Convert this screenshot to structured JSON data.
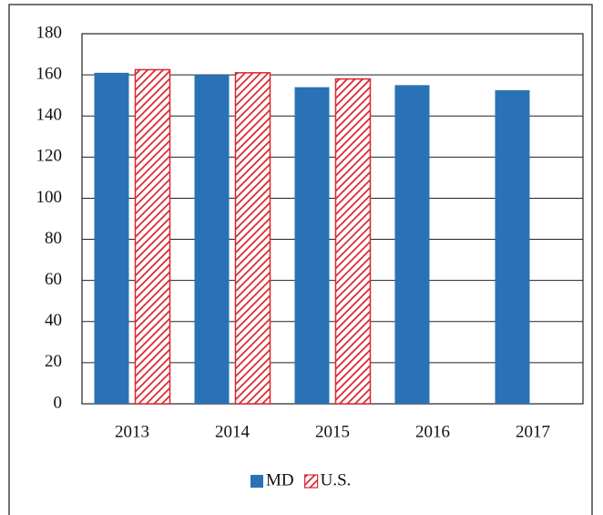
{
  "chart_data": {
    "type": "bar",
    "categories": [
      "2013",
      "2014",
      "2015",
      "2016",
      "2017"
    ],
    "series": [
      {
        "name": "MD",
        "color": "#2a72b6",
        "values": [
          161,
          160,
          154,
          155,
          152.5
        ]
      },
      {
        "name": "U.S.",
        "color": "#d9262f",
        "hatch": true,
        "values": [
          162.5,
          161,
          158,
          null,
          null
        ]
      }
    ],
    "ylim": [
      0,
      180
    ],
    "yticks": [
      0,
      20,
      40,
      60,
      80,
      100,
      120,
      140,
      160,
      180
    ],
    "grid": true,
    "legend": "bottom"
  }
}
